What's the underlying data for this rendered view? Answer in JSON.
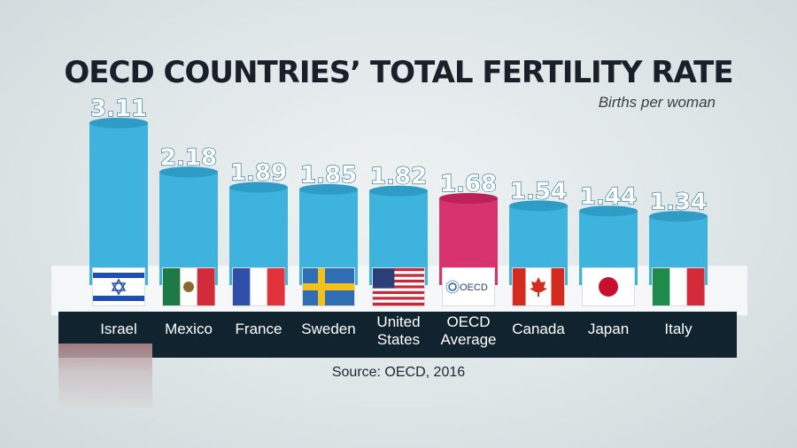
{
  "chart_data": {
    "type": "bar",
    "title": "OECD COUNTRIES’ TOTAL FERTILITY RATE",
    "subtitle": "Births per woman",
    "source": "Source: OECD, 2016",
    "ylabel": "Births per woman",
    "ylim": [
      0,
      3.2
    ],
    "categories": [
      {
        "lines": [
          "Israel"
        ],
        "flag": "israel"
      },
      {
        "lines": [
          "Mexico"
        ],
        "flag": "mexico"
      },
      {
        "lines": [
          "France"
        ],
        "flag": "france"
      },
      {
        "lines": [
          "Sweden"
        ],
        "flag": "sweden"
      },
      {
        "lines": [
          "United",
          "States"
        ],
        "flag": "united-states"
      },
      {
        "lines": [
          "OECD",
          "Average"
        ],
        "flag": "oecd",
        "flag_text": "OECD"
      },
      {
        "lines": [
          "Canada"
        ],
        "flag": "canada"
      },
      {
        "lines": [
          "Japan"
        ],
        "flag": "japan"
      },
      {
        "lines": [
          "Italy"
        ],
        "flag": "italy"
      }
    ],
    "values": [
      3.11,
      2.18,
      1.89,
      1.85,
      1.82,
      1.68,
      1.54,
      1.44,
      1.34
    ],
    "value_labels": [
      "3.11",
      "2.18",
      "1.89",
      "1.85",
      "1.82",
      "1.68",
      "1.54",
      "1.44",
      "1.34"
    ],
    "colors": {
      "bar": "#3db3dd",
      "bar_shade": "#2f9cc6",
      "highlight": "#d9336e",
      "highlight_shade": "#b92358",
      "label_bar": "#10232e"
    },
    "highlight_index": 5
  }
}
